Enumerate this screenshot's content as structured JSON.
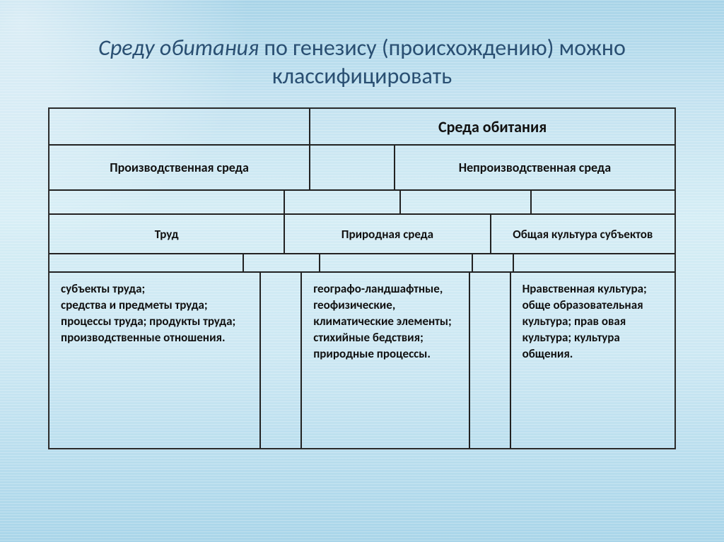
{
  "title_part_em": "Среду обитания",
  "title_part_rest": " по генезису (происхождению) можно классифицировать",
  "layout": {
    "diagram_width": 888,
    "border_color": "#222222",
    "title_color": "#2a4f72",
    "text_color": "#111111",
    "title_fontsize": 32,
    "header1_fontsize": 22,
    "header2_fontsize": 18,
    "header3_fontsize": 17,
    "detail_fontsize": 17
  },
  "row1": {
    "left_blank_w": 370,
    "label": "Среда обитания",
    "label_w": 518
  },
  "row2": {
    "col1_w": 370,
    "col1": "Производственная среда",
    "gap_w": 120,
    "col2_w": 398,
    "col2": "Непроизводственная среда"
  },
  "row3_spacer": {
    "c1": 334,
    "c2": 164,
    "c3": 186,
    "c4": 204
  },
  "row4": {
    "c1_w": 334,
    "c1": "Труд",
    "c2_w": 292,
    "c2": "Природная среда",
    "c3_w": 262,
    "c3": "Общая культура субъектов"
  },
  "row5_spacer": {
    "c1": 276,
    "c2": 108,
    "c3": 216,
    "c4": 58,
    "c5": 230
  },
  "row6": {
    "c1_w": 300,
    "c1": " субъекты труда;\n средства и предметы труда; процессы труда; продукты труда; производственные отношения.",
    "gap1_w": 58,
    "c2_w": 238,
    "c2": " географо-ландшафтные,\n геофизические, климатические элементы; стихийные бедствия; природные процессы.",
    "gap2_w": 58,
    "c3_w": 234,
    "c3": "Нравственная культура; обще образовательная\nкультура;  прав овая культура; культура общения."
  }
}
